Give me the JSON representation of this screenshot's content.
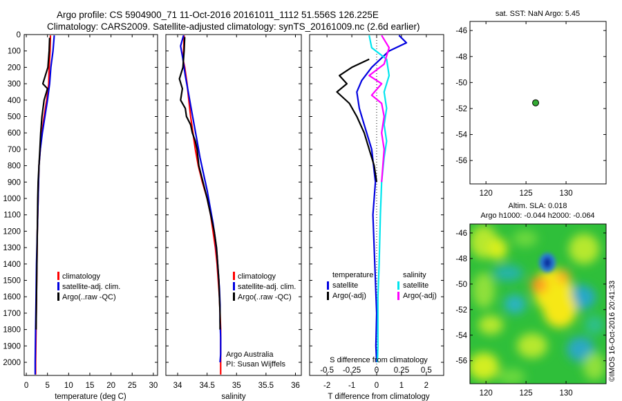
{
  "figure": {
    "title_line1": "Argo profile: CS 5904900_71 11-Oct-2016 20161011_1112 51.556S 126.225E",
    "title_line2": "Climatology: CARS2009. Satellite-adjusted climatology: synTS_20161009.nc (2.6d earlier)",
    "watermark": "©IMOS 16-Oct-2016 20:41:33",
    "colors": {
      "climatology": "#ff0000",
      "satellite": "#0000e0",
      "argo": "#000000",
      "sal_satellite": "#00e5ee",
      "sal_argo": "#ff00ff"
    }
  },
  "chart_data": [
    {
      "id": "temperature",
      "type": "line",
      "xlabel": "temperature (deg C)",
      "xlim": [
        -0.5,
        31
      ],
      "ylim": [
        2080,
        0
      ],
      "y_ticks": [
        0,
        100,
        200,
        300,
        400,
        500,
        600,
        700,
        800,
        900,
        1000,
        1100,
        1200,
        1300,
        1400,
        1500,
        1600,
        1700,
        1800,
        1900,
        2000
      ],
      "x_ticks": [
        0,
        5,
        10,
        15,
        20,
        25,
        30
      ],
      "legend": [
        "climatology",
        "satellite-adj. clim.",
        "Argo(..raw -QC)"
      ],
      "series": [
        {
          "name": "climatology",
          "color": "#ff0000",
          "points": [
            [
              5.7,
              5
            ],
            [
              5.6,
              100
            ],
            [
              5.4,
              200
            ],
            [
              5.3,
              300
            ],
            [
              4.8,
              400
            ],
            [
              4.2,
              500
            ],
            [
              3.7,
              600
            ],
            [
              3.3,
              700
            ],
            [
              3.0,
              800
            ],
            [
              2.8,
              1000
            ],
            [
              2.6,
              1200
            ],
            [
              2.5,
              1400
            ],
            [
              2.4,
              1600
            ],
            [
              2.3,
              1800
            ],
            [
              2.2,
              2000
            ],
            [
              2.2,
              2075
            ]
          ]
        },
        {
          "name": "satellite-adj. clim.",
          "color": "#0000e0",
          "points": [
            [
              6.6,
              5
            ],
            [
              6.3,
              100
            ],
            [
              5.8,
              200
            ],
            [
              5.5,
              300
            ],
            [
              5.0,
              400
            ],
            [
              4.4,
              500
            ],
            [
              3.8,
              600
            ],
            [
              3.3,
              700
            ],
            [
              3.0,
              800
            ],
            [
              2.8,
              1000
            ],
            [
              2.6,
              1200
            ],
            [
              2.4,
              1400
            ],
            [
              2.3,
              1600
            ],
            [
              2.2,
              1800
            ],
            [
              2.1,
              2000
            ],
            [
              2.1,
              2075
            ]
          ]
        },
        {
          "name": "Argo(..raw -QC)",
          "color": "#000000",
          "points": [
            [
              5.5,
              20
            ],
            [
              5.4,
              100
            ],
            [
              5.1,
              200
            ],
            [
              4.5,
              250
            ],
            [
              3.9,
              300
            ],
            [
              5.0,
              330
            ],
            [
              4.2,
              400
            ],
            [
              3.7,
              500
            ],
            [
              3.4,
              600
            ],
            [
              3.2,
              700
            ],
            [
              3.0,
              800
            ],
            [
              2.8,
              900
            ],
            [
              2.7,
              1000
            ],
            [
              2.6,
              1200
            ],
            [
              2.5,
              1400
            ],
            [
              2.4,
              1600
            ],
            [
              2.3,
              1800
            ]
          ]
        }
      ]
    },
    {
      "id": "salinity",
      "type": "line",
      "xlabel": "salinity",
      "xlim": [
        33.8,
        36.1
      ],
      "ylim": [
        2080,
        0
      ],
      "x_ticks": [
        34,
        34.5,
        35,
        35.5,
        36
      ],
      "x_tick_labels": [
        "34",
        "34.5",
        "35",
        "35.5",
        "36"
      ],
      "legend": [
        "climatology",
        "satellite-adj. clim.",
        "Argo(..raw -QC)"
      ],
      "annotation": [
        "Argo Australia",
        "PI: Susan Wijffels"
      ],
      "series": [
        {
          "name": "climatology",
          "color": "#ff0000",
          "points": [
            [
              34.11,
              5
            ],
            [
              34.1,
              100
            ],
            [
              34.09,
              150
            ],
            [
              34.12,
              200
            ],
            [
              34.16,
              300
            ],
            [
              34.19,
              400
            ],
            [
              34.22,
              500
            ],
            [
              34.26,
              600
            ],
            [
              34.3,
              700
            ],
            [
              34.35,
              800
            ],
            [
              34.42,
              900
            ],
            [
              34.5,
              1000
            ],
            [
              34.56,
              1100
            ],
            [
              34.6,
              1200
            ],
            [
              34.64,
              1300
            ],
            [
              34.67,
              1400
            ],
            [
              34.69,
              1500
            ],
            [
              34.71,
              1600
            ],
            [
              34.72,
              1700
            ],
            [
              34.73,
              1800
            ],
            [
              34.73,
              1900
            ],
            [
              34.73,
              2000
            ],
            [
              34.73,
              2075
            ]
          ]
        },
        {
          "name": "satellite-adj. clim.",
          "color": "#0000e0",
          "points": [
            [
              34.1,
              5
            ],
            [
              34.05,
              70
            ],
            [
              34.09,
              150
            ],
            [
              34.13,
              250
            ],
            [
              34.18,
              350
            ],
            [
              34.23,
              450
            ],
            [
              34.28,
              550
            ],
            [
              34.33,
              650
            ],
            [
              34.38,
              750
            ],
            [
              34.44,
              850
            ],
            [
              34.5,
              950
            ],
            [
              34.55,
              1050
            ],
            [
              34.6,
              1150
            ],
            [
              34.64,
              1250
            ],
            [
              34.67,
              1350
            ],
            [
              34.69,
              1450
            ],
            [
              34.71,
              1550
            ],
            [
              34.72,
              1650
            ],
            [
              34.72,
              1750
            ],
            [
              34.73,
              1850
            ],
            [
              34.73,
              1950
            ],
            [
              34.72,
              2000
            ]
          ]
        },
        {
          "name": "Argo(..raw -QC)",
          "color": "#000000",
          "points": [
            [
              34.12,
              15
            ],
            [
              34.11,
              100
            ],
            [
              34.09,
              200
            ],
            [
              34.03,
              270
            ],
            [
              34.08,
              330
            ],
            [
              34.05,
              400
            ],
            [
              34.13,
              450
            ],
            [
              34.15,
              500
            ],
            [
              34.22,
              550
            ],
            [
              34.25,
              600
            ],
            [
              34.3,
              650
            ],
            [
              34.33,
              700
            ],
            [
              34.36,
              800
            ],
            [
              34.43,
              900
            ],
            [
              34.5,
              1000
            ],
            [
              34.56,
              1100
            ],
            [
              34.62,
              1200
            ],
            [
              34.66,
              1300
            ],
            [
              34.68,
              1400
            ],
            [
              34.7,
              1500
            ],
            [
              34.71,
              1600
            ],
            [
              34.72,
              1700
            ],
            [
              34.72,
              1800
            ]
          ]
        }
      ]
    },
    {
      "id": "difference",
      "type": "line",
      "xlabel": "T difference from climatology",
      "xlabel_top": "S difference from climatology",
      "xlim": [
        -2.7,
        2.7
      ],
      "ylim": [
        2080,
        0
      ],
      "x_ticks": [
        -2,
        -1,
        0,
        1,
        2
      ],
      "x_tick_labels": [
        "-2",
        "-1",
        "0",
        "1",
        "2"
      ],
      "s_ticks": [
        -2,
        -1,
        0,
        1,
        2
      ],
      "s_tick_labels": [
        "-0.5",
        "-0.25",
        "0",
        "0.25",
        "0.5"
      ],
      "legend_headers": [
        "temperature",
        "salinity"
      ],
      "legend": [
        "satellite",
        "Argo(-adj)",
        "satellite",
        "Argo(-adj)"
      ],
      "series": [
        {
          "name": "T satellite",
          "color": "#0000e0",
          "points": [
            [
              0.9,
              5
            ],
            [
              1.2,
              50
            ],
            [
              0.5,
              100
            ],
            [
              -0.2,
              200
            ],
            [
              -0.6,
              280
            ],
            [
              -0.8,
              350
            ],
            [
              -0.7,
              450
            ],
            [
              -0.5,
              550
            ],
            [
              -0.2,
              700
            ],
            [
              -0.05,
              900
            ],
            [
              -0.15,
              1100
            ],
            [
              -0.1,
              1300
            ],
            [
              -0.05,
              1500
            ],
            [
              0,
              1700
            ],
            [
              -0.03,
              1900
            ],
            [
              0,
              2000
            ]
          ]
        },
        {
          "name": "T Argo(-adj)",
          "color": "#000000",
          "points": [
            [
              -0.3,
              150
            ],
            [
              -1.0,
              200
            ],
            [
              -1.5,
              250
            ],
            [
              -1.2,
              300
            ],
            [
              -1.6,
              350
            ],
            [
              -1.1,
              420
            ],
            [
              -0.8,
              500
            ],
            [
              -0.5,
              600
            ],
            [
              -0.3,
              700
            ],
            [
              -0.1,
              800
            ],
            [
              0,
              900
            ]
          ]
        },
        {
          "name": "S satellite",
          "color": "#00e5ee",
          "points": [
            [
              -0.3,
              5
            ],
            [
              -0.2,
              80
            ],
            [
              0.4,
              150
            ],
            [
              0.5,
              250
            ],
            [
              0.3,
              350
            ],
            [
              0.4,
              450
            ],
            [
              0.3,
              550
            ],
            [
              0.4,
              650
            ],
            [
              0.3,
              750
            ],
            [
              0.2,
              900
            ],
            [
              0.15,
              1100
            ],
            [
              0.1,
              1400
            ],
            [
              0.05,
              1600
            ],
            [
              0.05,
              1900
            ],
            [
              0.03,
              2000
            ]
          ]
        },
        {
          "name": "S Argo(-adj)",
          "color": "#ff00ff",
          "points": [
            [
              0.2,
              5
            ],
            [
              0.5,
              80
            ],
            [
              0.3,
              180
            ],
            [
              -0.3,
              250
            ],
            [
              0.2,
              300
            ],
            [
              -0.2,
              370
            ],
            [
              0.2,
              420
            ],
            [
              0.3,
              500
            ],
            [
              0.2,
              600
            ],
            [
              0.3,
              700
            ],
            [
              0.25,
              800
            ],
            [
              0.2,
              900
            ]
          ]
        }
      ]
    },
    {
      "id": "sst_map",
      "type": "scatter",
      "title": "sat. SST: NaN Argo: 5.45",
      "xlim": [
        118,
        135
      ],
      "ylim": [
        -57.8,
        -45.3
      ],
      "x_ticks": [
        120,
        125,
        130
      ],
      "y_ticks": [
        -46,
        -48,
        -50,
        -52,
        -54,
        -56
      ],
      "points": [
        [
          126.2,
          -51.56
        ]
      ]
    },
    {
      "id": "sla_map",
      "type": "heatmap",
      "title_line1": "Altim. SLA: 0.018",
      "title_line2": "Argo h1000: -0.044 h2000: -0.064",
      "xlim": [
        118,
        135
      ],
      "ylim": [
        -57.8,
        -45.3
      ],
      "x_ticks": [
        120,
        125,
        130
      ],
      "y_ticks": [
        -46,
        -48,
        -50,
        -52,
        -54,
        -56
      ]
    }
  ]
}
